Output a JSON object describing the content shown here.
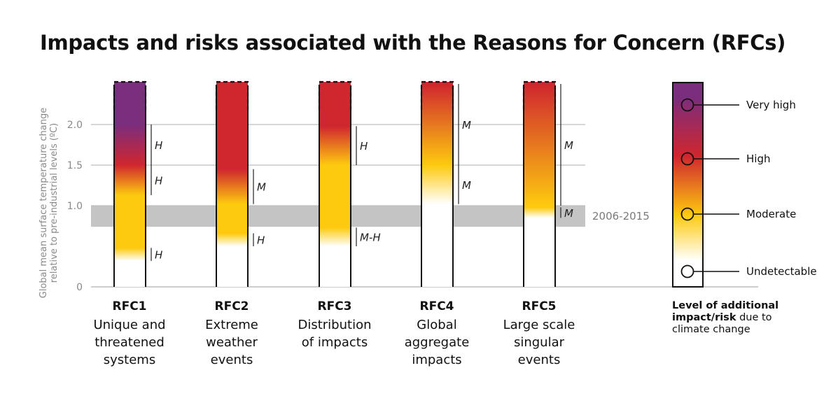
{
  "title": "Impacts and risks associated with the Reasons for Concern (RFCs)",
  "chart_data": {
    "type": "bar",
    "ylabel": "Global mean surface temperature change relative to pre-industrial levels (ºC)",
    "ylabel_lines": [
      "Global mean surface temperature change",
      "relative to pre-industrial levels (ºC)"
    ],
    "yticks": [
      "0",
      "1.0",
      "1.5",
      "2.0"
    ],
    "ytick_values": [
      0,
      1.0,
      1.5,
      2.0
    ],
    "ylim": [
      0,
      2.55
    ],
    "reference_band": {
      "label": "2006-2015",
      "from": 0.74,
      "to": 1.0
    },
    "categories": [
      "RFC1",
      "RFC2",
      "RFC3",
      "RFC4",
      "RFC5"
    ],
    "descriptions": [
      [
        "Unique and",
        "threatened",
        "systems"
      ],
      [
        "Extreme",
        "weather",
        "events"
      ],
      [
        "Distribution",
        "of impacts"
      ],
      [
        "Global",
        "aggregate",
        "impacts"
      ],
      [
        "Large scale",
        "singular",
        "events"
      ]
    ],
    "transitions": [
      [
        {
          "from_level": "Undetectable",
          "to_level": "Moderate",
          "start": 0.32,
          "end": 0.48,
          "confidence": "H"
        },
        {
          "from_level": "Moderate",
          "to_level": "High",
          "start": 1.13,
          "end": 1.5,
          "confidence": "H"
        },
        {
          "from_level": "High",
          "to_level": "Very high",
          "start": 1.5,
          "end": 2.0,
          "confidence": "H"
        }
      ],
      [
        {
          "from_level": "Undetectable",
          "to_level": "Moderate",
          "start": 0.5,
          "end": 0.66,
          "confidence": "H"
        },
        {
          "from_level": "Moderate",
          "to_level": "High",
          "start": 1.02,
          "end": 1.45,
          "confidence": "M"
        }
      ],
      [
        {
          "from_level": "Undetectable",
          "to_level": "Moderate",
          "start": 0.5,
          "end": 0.73,
          "confidence": "M-H"
        },
        {
          "from_level": "Moderate",
          "to_level": "High",
          "start": 1.5,
          "end": 1.98,
          "confidence": "H"
        }
      ],
      [
        {
          "from_level": "Undetectable",
          "to_level": "Moderate",
          "start": 1.02,
          "end": 1.5,
          "confidence": "M"
        },
        {
          "from_level": "Moderate",
          "to_level": "High",
          "start": 1.5,
          "end": 2.5,
          "confidence": "M"
        }
      ],
      [
        {
          "from_level": "Undetectable",
          "to_level": "Moderate",
          "start": 0.85,
          "end": 0.98,
          "confidence": "M"
        },
        {
          "from_level": "Moderate",
          "to_level": "High",
          "start": 1.0,
          "end": 2.5,
          "confidence": "M"
        }
      ]
    ],
    "colors": {
      "Undetectable": "#ffffff",
      "Moderate": "#fdca0f",
      "High": "#d0262e",
      "Very high": "#7b2d7e"
    }
  },
  "legend": {
    "levels": [
      "Very high",
      "High",
      "Moderate",
      "Undetectable"
    ],
    "title_bold": "Level of additional impact/risk",
    "title_rest": " due to climate change"
  }
}
